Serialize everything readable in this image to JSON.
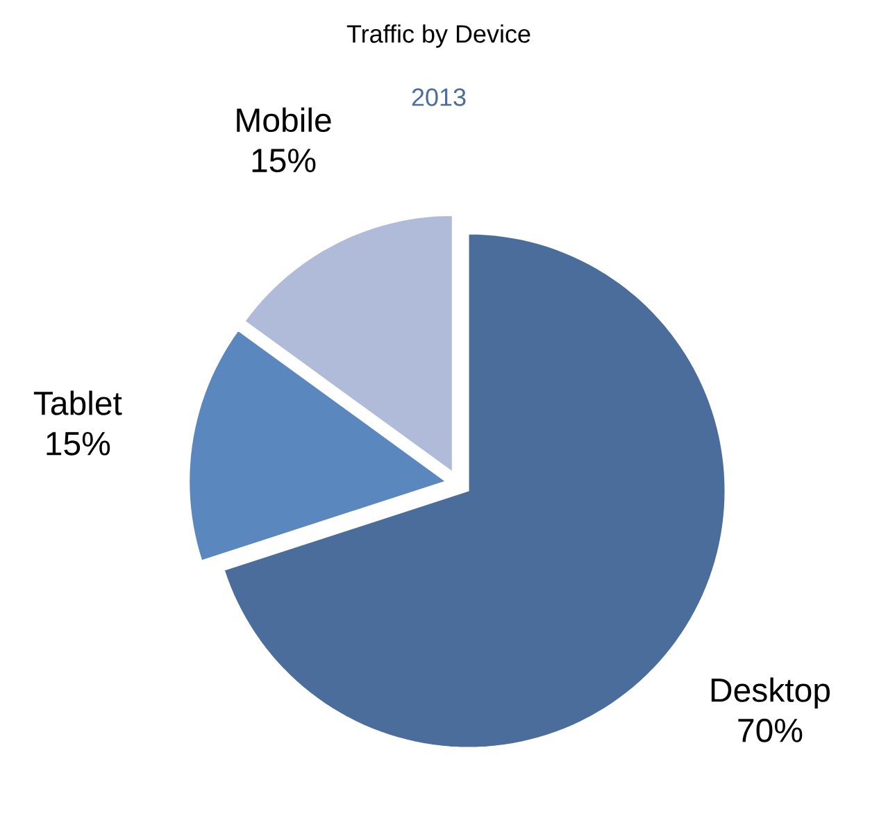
{
  "chart_data": {
    "type": "pie",
    "title": "Traffic by Device",
    "subtitle": "2013",
    "categories": [
      "Desktop",
      "Tablet",
      "Mobile"
    ],
    "values": [
      70,
      15,
      15
    ],
    "value_labels": [
      "70%",
      "15%",
      "15%"
    ],
    "colors": [
      "#4a6d9c",
      "#5b87bf",
      "#afbbd8"
    ]
  }
}
